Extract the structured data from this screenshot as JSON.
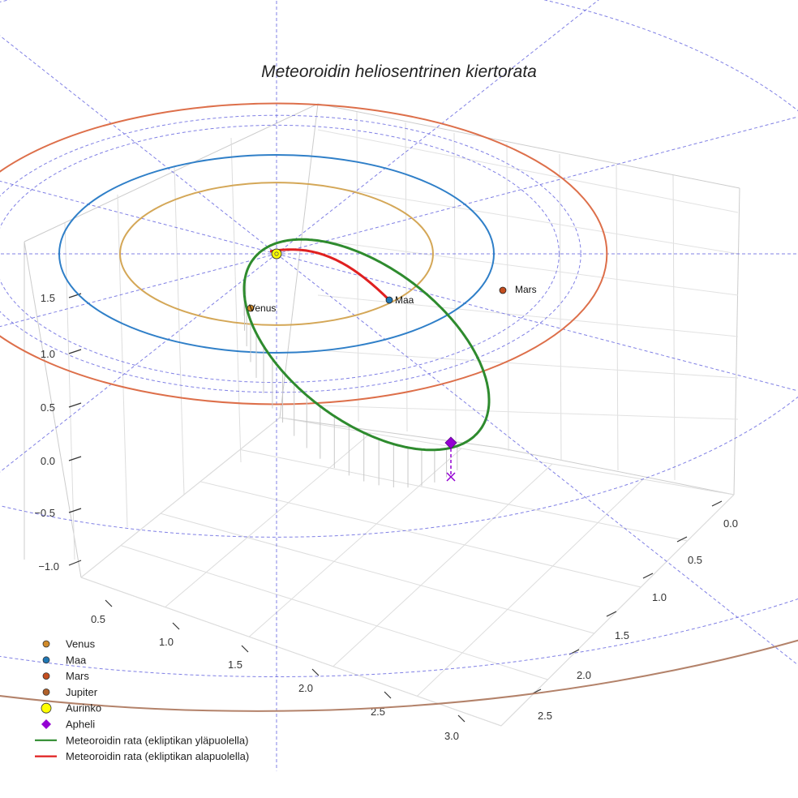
{
  "chart_data": {
    "type": "line",
    "title": "Meteoroidin heliosentrinen kiertorata",
    "axes": {
      "x": {
        "ticks": [
          "0.5",
          "1.0",
          "1.5",
          "2.0",
          "2.5",
          "3.0"
        ]
      },
      "y": {
        "ticks": [
          "0.0",
          "0.5",
          "1.0",
          "1.5",
          "2.0",
          "2.5"
        ]
      },
      "z": {
        "ticks": [
          "−1.0",
          "−0.5",
          "0.0",
          "0.5",
          "1.0",
          "1.5"
        ]
      }
    },
    "planets": [
      {
        "name": "Venus",
        "label": "Venus",
        "orbit_radius_au": 0.72,
        "color": "#d08a2a",
        "orbit_color": "#d4a757"
      },
      {
        "name": "Maa",
        "label": "Maa",
        "orbit_radius_au": 1.0,
        "color": "#1f77b4",
        "orbit_color": "#2f7fc8"
      },
      {
        "name": "Mars",
        "label": "Mars",
        "orbit_radius_au": 1.52,
        "color": "#c44e1f",
        "orbit_color": "#dd6f4a"
      },
      {
        "name": "Jupiter",
        "label": "",
        "orbit_radius_au": 5.2,
        "color": "#b0612a",
        "orbit_color": "#b3826a"
      }
    ],
    "sun": {
      "name": "Aurinko",
      "color": "#ffff00"
    },
    "aphelion": {
      "name": "Apheli",
      "color": "#9400d3"
    },
    "series": [
      {
        "name": "Meteoroidin rata (ekliptikan yläpuolella)",
        "color": "#2e8b2e"
      },
      {
        "name": "Meteoroidin rata (ekliptikan alapuolella)",
        "color": "#e02020"
      }
    ],
    "legend": {
      "position": "bottom-left",
      "items": [
        {
          "label": "Venus",
          "marker": "circle",
          "color": "#d08a2a"
        },
        {
          "label": "Maa",
          "marker": "circle",
          "color": "#1f77b4"
        },
        {
          "label": "Mars",
          "marker": "circle",
          "color": "#c44e1f"
        },
        {
          "label": "Jupiter",
          "marker": "circle",
          "color": "#b0612a"
        },
        {
          "label": "Aurinko",
          "marker": "circle-large",
          "color": "#ffff00"
        },
        {
          "label": "Apheli",
          "marker": "diamond",
          "color": "#9400d3"
        },
        {
          "label": "Meteoroidin rata (ekliptikan yläpuolella)",
          "marker": "line",
          "color": "#2e8b2e"
        },
        {
          "label": "Meteoroidin rata (ekliptikan alapuolella)",
          "marker": "line",
          "color": "#e02020"
        }
      ]
    },
    "grid": true,
    "reference_grid": "polar, ecliptic plane"
  }
}
